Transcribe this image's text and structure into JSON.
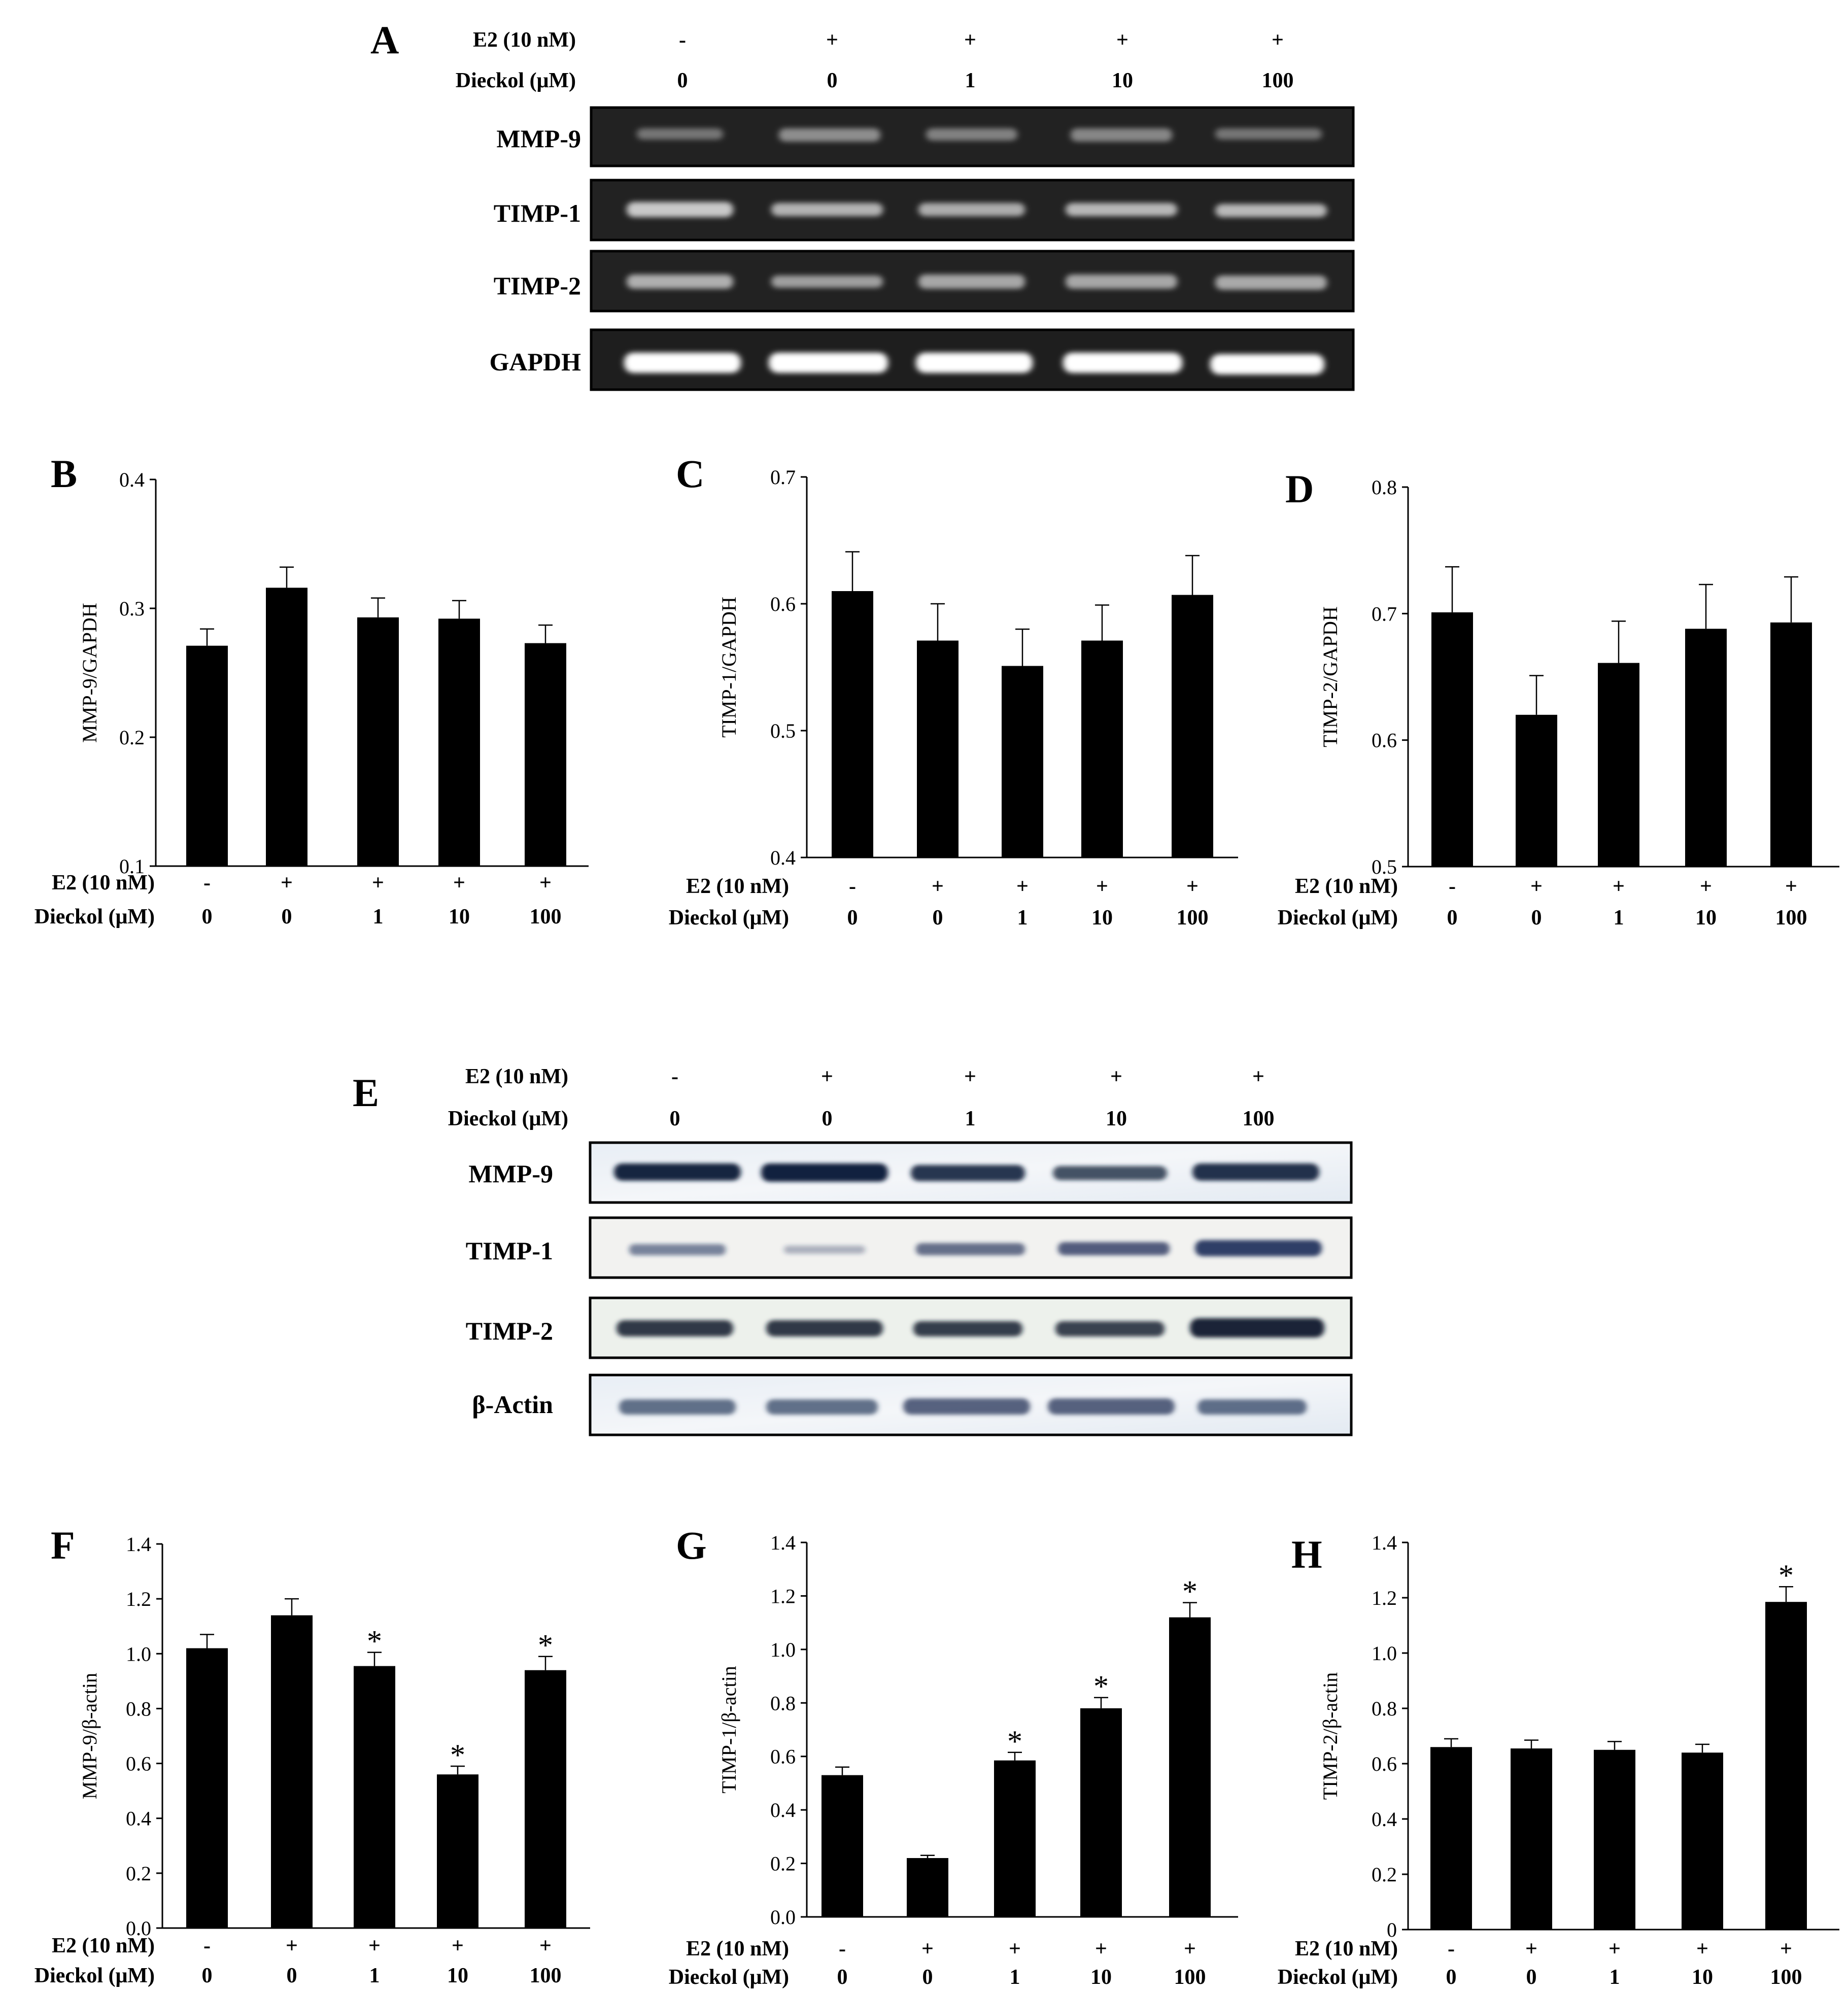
{
  "conditions": {
    "row1_label": "E2 (10 nM)",
    "row2_label": "Dieckol (μM)",
    "e2": [
      "-",
      "+",
      "+",
      "+",
      "+"
    ],
    "dieckol": [
      "0",
      "0",
      "1",
      "10",
      "100"
    ]
  },
  "gels": [
    {
      "letter": "A",
      "kind": "rt-pcr",
      "lanes_shown": 5,
      "rows": [
        {
          "label": "MMP-9",
          "band_intensity": [
            0.28,
            0.45,
            0.36,
            0.4,
            0.28
          ]
        },
        {
          "label": "TIMP-1",
          "band_intensity": [
            0.8,
            0.65,
            0.62,
            0.68,
            0.7
          ]
        },
        {
          "label": "TIMP-2",
          "band_intensity": [
            0.65,
            0.55,
            0.6,
            0.6,
            0.62
          ]
        },
        {
          "label": "GAPDH",
          "band_intensity": [
            1.0,
            1.0,
            1.0,
            1.0,
            1.0
          ]
        }
      ]
    },
    {
      "letter": "E",
      "kind": "western",
      "lanes_shown": 5,
      "rows": [
        {
          "label": "MMP-9",
          "band_intensity": [
            0.95,
            0.98,
            0.85,
            0.7,
            0.88
          ]
        },
        {
          "label": "TIMP-1",
          "band_intensity": [
            0.4,
            0.1,
            0.55,
            0.65,
            0.85
          ]
        },
        {
          "label": "TIMP-2",
          "band_intensity": [
            0.8,
            0.8,
            0.78,
            0.75,
            0.92
          ]
        },
        {
          "label": "β-Actin",
          "band_intensity": [
            0.6,
            0.6,
            0.7,
            0.7,
            0.62
          ]
        }
      ]
    }
  ],
  "chart_data": [
    {
      "type": "bar",
      "letter": "B",
      "ylabel": "MMP-9/GAPDH",
      "ylim": [
        0.1,
        0.4
      ],
      "yticks": [
        "0.1",
        "0.2",
        "0.3",
        "0.4"
      ],
      "tick_values": [
        0.1,
        0.2,
        0.3,
        0.4
      ],
      "values": [
        0.271,
        0.316,
        0.293,
        0.292,
        0.273
      ],
      "errors": [
        0.013,
        0.016,
        0.015,
        0.014,
        0.014
      ],
      "sig": [
        "",
        "",
        "",
        "",
        ""
      ]
    },
    {
      "type": "bar",
      "letter": "C",
      "ylabel": "TIMP-1/GAPDH",
      "ylim": [
        0.4,
        0.7
      ],
      "yticks": [
        "0.4",
        "0.5",
        "0.6",
        "0.7"
      ],
      "tick_values": [
        0.4,
        0.5,
        0.6,
        0.7
      ],
      "values": [
        0.61,
        0.571,
        0.551,
        0.571,
        0.607
      ],
      "errors": [
        0.031,
        0.029,
        0.029,
        0.028,
        0.031
      ],
      "sig": [
        "",
        "",
        "",
        "",
        ""
      ]
    },
    {
      "type": "bar",
      "letter": "D",
      "ylabel": "TIMP-2/GAPDH",
      "ylim": [
        0.5,
        0.8
      ],
      "yticks": [
        "0.5",
        "0.6",
        "0.7",
        "0.8"
      ],
      "tick_values": [
        0.5,
        0.6,
        0.7,
        0.8
      ],
      "values": [
        0.701,
        0.62,
        0.661,
        0.688,
        0.693
      ],
      "errors": [
        0.036,
        0.031,
        0.033,
        0.035,
        0.036
      ],
      "sig": [
        "",
        "",
        "",
        "",
        ""
      ]
    },
    {
      "type": "bar",
      "letter": "F",
      "ylabel": "MMP-9/β-actin",
      "ylim": [
        0.0,
        1.4
      ],
      "yticks": [
        "0.0",
        "0.2",
        "0.4",
        "0.6",
        "0.8",
        "1.0",
        "1.2",
        "1.4"
      ],
      "tick_values": [
        0,
        0.2,
        0.4,
        0.6,
        0.8,
        1.0,
        1.2,
        1.4
      ],
      "values": [
        1.02,
        1.14,
        0.955,
        0.56,
        0.94
      ],
      "errors": [
        0.05,
        0.06,
        0.05,
        0.03,
        0.05
      ],
      "sig": [
        "",
        "",
        "*",
        "*",
        "*"
      ]
    },
    {
      "type": "bar",
      "letter": "G",
      "ylabel": "TIMP-1/β-actin",
      "ylim": [
        0.0,
        1.4
      ],
      "yticks": [
        "0.0",
        "0.2",
        "0.4",
        "0.6",
        "0.8",
        "1.0",
        "1.2",
        "1.4"
      ],
      "tick_values": [
        0,
        0.2,
        0.4,
        0.6,
        0.8,
        1.0,
        1.2,
        1.4
      ],
      "values": [
        0.53,
        0.22,
        0.585,
        0.78,
        1.12
      ],
      "errors": [
        0.03,
        0.01,
        0.03,
        0.04,
        0.055
      ],
      "sig": [
        "",
        "",
        "*",
        "*",
        "*"
      ]
    },
    {
      "type": "bar",
      "letter": "H",
      "ylabel": "TIMP-2/β-actin",
      "ylim": [
        0,
        1.4
      ],
      "yticks": [
        "0",
        "0.2",
        "0.4",
        "0.6",
        "0.8",
        "1.0",
        "1.2",
        "1.4"
      ],
      "tick_values": [
        0,
        0.2,
        0.4,
        0.6,
        0.8,
        1.0,
        1.2,
        1.4
      ],
      "values": [
        0.66,
        0.655,
        0.65,
        0.64,
        1.185
      ],
      "errors": [
        0.03,
        0.03,
        0.03,
        0.03,
        0.055
      ],
      "sig": [
        "",
        "",
        "",
        "",
        "*"
      ]
    }
  ]
}
